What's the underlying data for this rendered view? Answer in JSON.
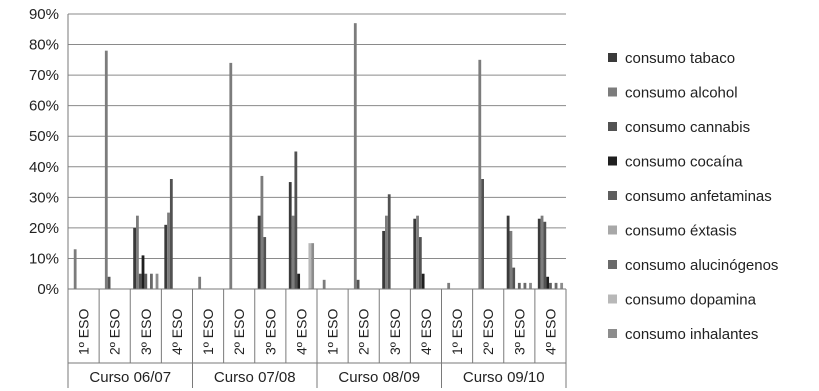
{
  "chart_data": {
    "type": "bar",
    "title": "",
    "xlabel": "",
    "ylabel": "",
    "ylim": [
      0,
      90
    ],
    "yticks": [
      "0%",
      "10%",
      "20%",
      "30%",
      "40%",
      "50%",
      "60%",
      "70%",
      "80%",
      "90%"
    ],
    "grid": true,
    "legend_position": "right",
    "groups": [
      "Curso 06/07",
      "Curso 07/08",
      "Curso 08/09",
      "Curso 09/10"
    ],
    "categories": [
      "1º ESO",
      "2º ESO",
      "3º ESO",
      "4º ESO",
      "1º ESO",
      "2º ESO",
      "3º ESO",
      "4º ESO",
      "1º ESO",
      "2º ESO",
      "3º ESO",
      "4º ESO",
      "1º ESO",
      "2º ESO",
      "3º ESO",
      "4º ESO"
    ],
    "series": [
      {
        "name": "consumo tabaco",
        "color": "#3a3a3a",
        "values": [
          0,
          0,
          20,
          21,
          0,
          0,
          24,
          35,
          0,
          0,
          19,
          23,
          0,
          0,
          24,
          23
        ]
      },
      {
        "name": "consumo alcohol",
        "color": "#7c7c7c",
        "values": [
          13,
          78,
          24,
          25,
          4,
          74,
          37,
          24,
          3,
          87,
          24,
          24,
          2,
          75,
          19,
          24
        ]
      },
      {
        "name": "consumo cannabis",
        "color": "#525252",
        "values": [
          0,
          4,
          5,
          36,
          0,
          0,
          17,
          45,
          0,
          3,
          31,
          17,
          0,
          36,
          7,
          22
        ]
      },
      {
        "name": "consumo cocaína",
        "color": "#1f1f1f",
        "values": [
          0,
          0,
          11,
          0,
          0,
          0,
          0,
          5,
          0,
          0,
          0,
          5,
          0,
          0,
          0,
          4
        ]
      },
      {
        "name": "consumo anfetaminas",
        "color": "#5e5e5e",
        "values": [
          0,
          0,
          5,
          0,
          0,
          0,
          0,
          0,
          0,
          0,
          0,
          0,
          0,
          0,
          2,
          2
        ]
      },
      {
        "name": "consumo éxtasis",
        "color": "#a8a8a8",
        "values": [
          0,
          0,
          0,
          0,
          0,
          0,
          0,
          0,
          0,
          0,
          0,
          0,
          0,
          0,
          0,
          0
        ]
      },
      {
        "name": "consumo alucinógenos",
        "color": "#6a6a6a",
        "values": [
          0,
          0,
          5,
          0,
          0,
          0,
          0,
          0,
          0,
          0,
          0,
          0,
          0,
          0,
          2,
          2
        ]
      },
      {
        "name": "consumo dopamina",
        "color": "#b8b8b8",
        "values": [
          0,
          0,
          0,
          0,
          0,
          0,
          0,
          15,
          0,
          0,
          0,
          0,
          0,
          0,
          0,
          0
        ]
      },
      {
        "name": "consumo inhalantes",
        "color": "#8c8c8c",
        "values": [
          0,
          0,
          5,
          0,
          0,
          0,
          0,
          15,
          0,
          0,
          0,
          0,
          0,
          0,
          2,
          2
        ]
      }
    ]
  }
}
